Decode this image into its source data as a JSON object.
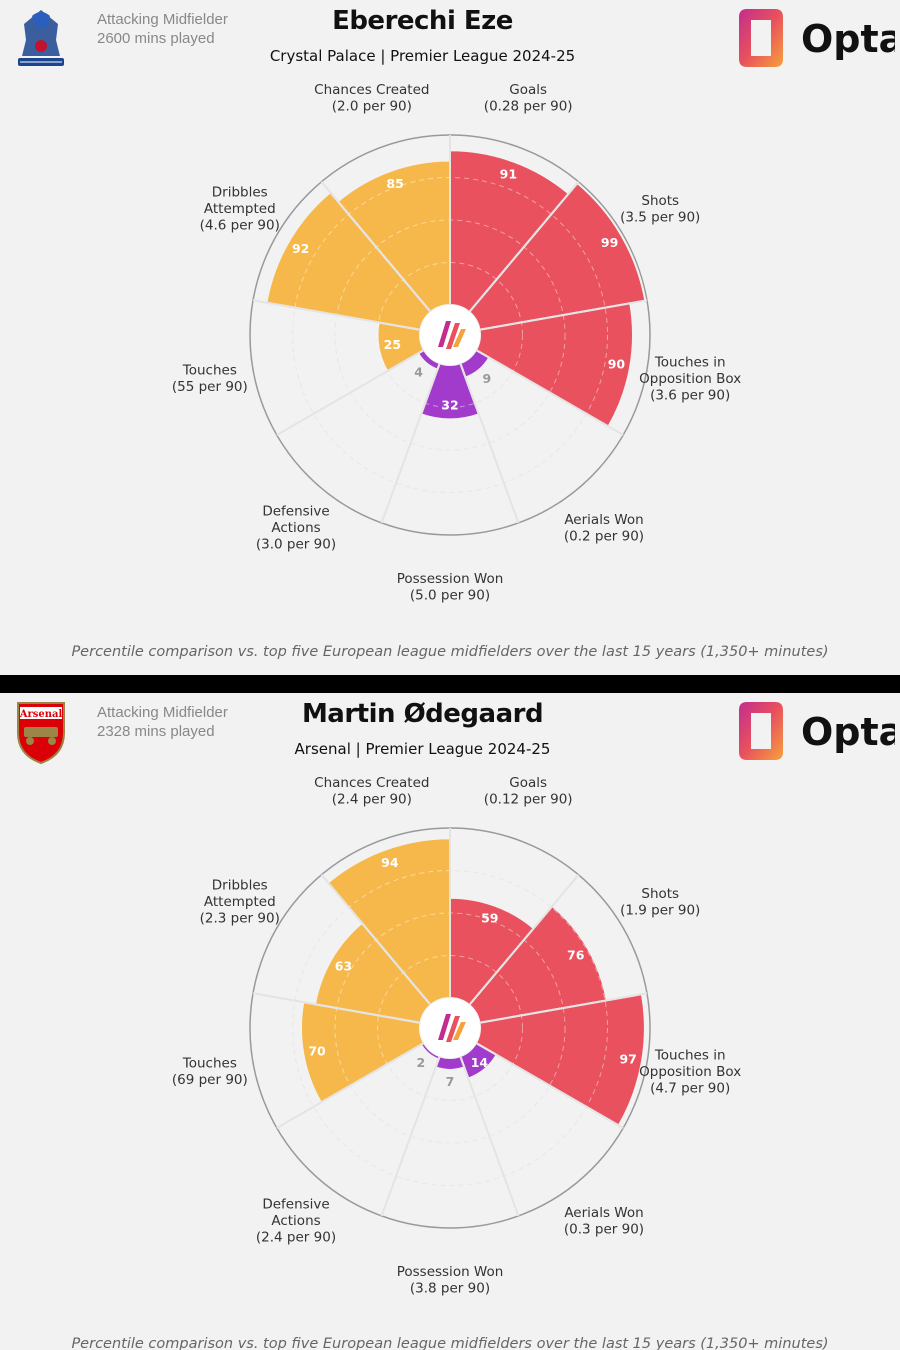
{
  "colors": {
    "attacking": "#e8515d",
    "possession": "#f6b84b",
    "defending": "#a23bcb",
    "background": "#f2f2f2"
  },
  "brand": {
    "opta": "Opta"
  },
  "footnote": "Percentile comparison vs. top five European league midfielders over the last 15 years (1,350+ minutes)",
  "chart_data": [
    {
      "type": "radar",
      "player": "Eberechi Eze",
      "subtitle": "Crystal Palace | Premier League 2024-25",
      "role": "Attacking Midfielder",
      "minutes": "2600 mins played",
      "club_crest": "crystal-palace-crest",
      "categories": [
        {
          "label": [
            "Goals",
            "(0.28 per 90)"
          ],
          "value": 91,
          "group": "attacking"
        },
        {
          "label": [
            "Shots",
            "(3.5 per 90)"
          ],
          "value": 99,
          "group": "attacking"
        },
        {
          "label": [
            "Touches in",
            "Opposition Box",
            "(3.6 per 90)"
          ],
          "value": 90,
          "group": "attacking"
        },
        {
          "label": [
            "Aerials Won",
            "(0.2 per 90)"
          ],
          "value": 9,
          "group": "defending"
        },
        {
          "label": [
            "Possession Won",
            "(5.0 per 90)"
          ],
          "value": 32,
          "group": "defending"
        },
        {
          "label": [
            "Defensive",
            "Actions",
            "(3.0 per 90)"
          ],
          "value": 4,
          "group": "defending"
        },
        {
          "label": [
            "Touches",
            "(55 per 90)"
          ],
          "value": 25,
          "group": "possession"
        },
        {
          "label": [
            "Dribbles",
            "Attempted",
            "(4.6 per 90)"
          ],
          "value": 92,
          "group": "possession"
        },
        {
          "label": [
            "Chances Created",
            "(2.0 per 90)"
          ],
          "value": 85,
          "group": "possession"
        }
      ],
      "range": [
        0,
        100
      ]
    },
    {
      "type": "radar",
      "player": "Martin Ødegaard",
      "subtitle": "Arsenal | Premier League 2024-25",
      "role": "Attacking Midfielder",
      "minutes": "2328 mins played",
      "club_crest": "arsenal-crest",
      "crest_text": "Arsenal",
      "categories": [
        {
          "label": [
            "Goals",
            "(0.12 per 90)"
          ],
          "value": 59,
          "group": "attacking"
        },
        {
          "label": [
            "Shots",
            "(1.9 per 90)"
          ],
          "value": 76,
          "group": "attacking"
        },
        {
          "label": [
            "Touches in",
            "Opposition Box",
            "(4.7 per 90)"
          ],
          "value": 97,
          "group": "attacking"
        },
        {
          "label": [
            "Aerials Won",
            "(0.3 per 90)"
          ],
          "value": 14,
          "group": "defending"
        },
        {
          "label": [
            "Possession Won",
            "(3.8 per 90)"
          ],
          "value": 7,
          "group": "defending"
        },
        {
          "label": [
            "Defensive",
            "Actions",
            "(2.4 per 90)"
          ],
          "value": 2,
          "group": "defending"
        },
        {
          "label": [
            "Touches",
            "(69 per 90)"
          ],
          "value": 70,
          "group": "possession"
        },
        {
          "label": [
            "Dribbles",
            "Attempted",
            "(2.3 per 90)"
          ],
          "value": 63,
          "group": "possession"
        },
        {
          "label": [
            "Chances Created",
            "(2.4 per 90)"
          ],
          "value": 94,
          "group": "possession"
        }
      ],
      "range": [
        0,
        100
      ]
    }
  ]
}
